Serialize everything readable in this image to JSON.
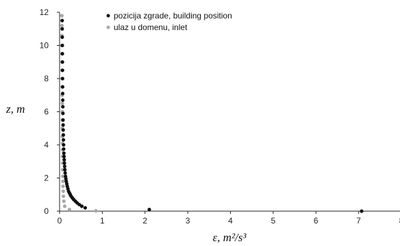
{
  "chart_data": {
    "type": "scatter",
    "title": "",
    "xlabel": "ε, m²/s³",
    "ylabel": "z, m",
    "xlim": [
      0,
      8
    ],
    "ylim": [
      0,
      12
    ],
    "x_ticks": [
      "0",
      "1",
      "2",
      "3",
      "4",
      "5",
      "6",
      "7",
      "8"
    ],
    "y_ticks": [
      "0",
      "2",
      "4",
      "6",
      "8",
      "10",
      "12"
    ],
    "grid": false,
    "legend_position": "top-left",
    "series": [
      {
        "name": "pozicija zgrade, building position",
        "color": "#111111",
        "x": [
          7.07,
          2.1,
          0.6,
          0.52,
          0.46,
          0.41,
          0.37,
          0.33,
          0.3,
          0.27,
          0.25,
          0.23,
          0.21,
          0.195,
          0.18,
          0.168,
          0.157,
          0.147,
          0.139,
          0.131,
          0.124,
          0.118,
          0.113,
          0.108,
          0.104,
          0.1,
          0.096,
          0.093,
          0.09,
          0.087,
          0.084,
          0.082,
          0.08,
          0.078,
          0.076,
          0.074,
          0.072,
          0.071,
          0.069,
          0.068,
          0.066,
          0.065,
          0.064,
          0.062,
          0.061,
          0.06
        ],
        "y": [
          0.0,
          0.1,
          0.2,
          0.3,
          0.4,
          0.5,
          0.6,
          0.7,
          0.8,
          0.9,
          1.0,
          1.1,
          1.2,
          1.35,
          1.5,
          1.65,
          1.8,
          1.95,
          2.1,
          2.3,
          2.5,
          2.7,
          2.9,
          3.1,
          3.3,
          3.5,
          3.75,
          4.0,
          4.3,
          4.6,
          4.9,
          5.2,
          5.5,
          5.9,
          6.3,
          6.7,
          7.1,
          7.5,
          8.0,
          8.5,
          9.0,
          9.5,
          10.0,
          10.5,
          11.0,
          11.5
        ]
      },
      {
        "name": "ulaz u domenu, inlet",
        "color": "#a8a8a8",
        "x": [
          0.85,
          0.23,
          0.12,
          0.1,
          0.09,
          0.085,
          0.08,
          0.078,
          0.075,
          0.073,
          0.072,
          0.07,
          0.069,
          0.068,
          0.067,
          0.066,
          0.065,
          0.064,
          0.063,
          0.062,
          0.061,
          0.06,
          0.059,
          0.058,
          0.057,
          0.056,
          0.055,
          0.054,
          0.053
        ],
        "y": [
          0.02,
          0.1,
          0.3,
          0.6,
          0.9,
          1.2,
          1.5,
          1.8,
          2.1,
          2.5,
          2.9,
          3.3,
          3.7,
          4.1,
          4.5,
          5.0,
          5.5,
          6.0,
          6.5,
          7.0,
          7.5,
          8.0,
          8.5,
          9.0,
          9.5,
          10.0,
          10.6,
          11.2,
          11.8
        ]
      }
    ]
  }
}
